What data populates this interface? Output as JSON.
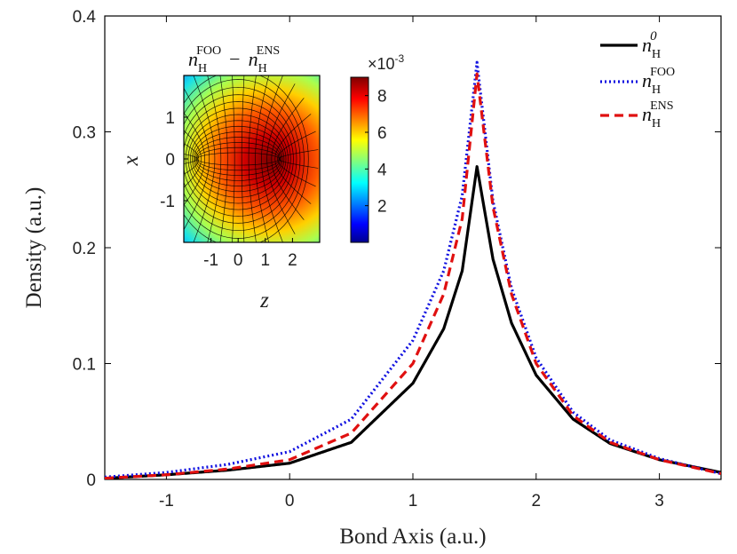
{
  "chart_data": {
    "type": "line",
    "title": "",
    "xlabel": "Bond Axis (a.u.)",
    "ylabel": "Density (a.u.)",
    "xlim": [
      -1.5,
      3.5
    ],
    "ylim": [
      0,
      0.4
    ],
    "xticks": [
      -1,
      0,
      1,
      2,
      3
    ],
    "yticks": [
      0,
      0.1,
      0.2,
      0.3,
      0.4
    ],
    "xtick_labels": [
      "-1",
      "0",
      "1",
      "2",
      "3"
    ],
    "ytick_labels": [
      "0",
      "0.1",
      "0.2",
      "0.3",
      "0.4"
    ],
    "grid": false,
    "legend_position": "top-right",
    "peak_x": 1.52,
    "series": [
      {
        "name": "n_H^0",
        "label_base": "n",
        "label_sub": "H",
        "label_sup": "0",
        "color": "#000000",
        "style": "solid",
        "peak": 0.27,
        "x": [
          -1.5,
          -1.0,
          -0.5,
          0.0,
          0.5,
          1.0,
          1.25,
          1.4,
          1.52,
          1.65,
          1.8,
          2.0,
          2.3,
          2.6,
          3.0,
          3.5
        ],
        "y": [
          0.001,
          0.004,
          0.008,
          0.014,
          0.032,
          0.083,
          0.13,
          0.18,
          0.27,
          0.19,
          0.135,
          0.09,
          0.052,
          0.031,
          0.017,
          0.006
        ]
      },
      {
        "name": "n_H^FOO",
        "label_base": "n",
        "label_sub": "H",
        "label_sup": "FOO",
        "color": "#1010e0",
        "style": "dotted",
        "peak": 0.36,
        "x": [
          -1.5,
          -1.0,
          -0.5,
          0.0,
          0.5,
          1.0,
          1.25,
          1.4,
          1.52,
          1.65,
          1.8,
          2.0,
          2.3,
          2.6,
          3.0,
          3.5
        ],
        "y": [
          0.002,
          0.006,
          0.013,
          0.024,
          0.052,
          0.12,
          0.18,
          0.245,
          0.36,
          0.24,
          0.165,
          0.105,
          0.058,
          0.034,
          0.018,
          0.005
        ]
      },
      {
        "name": "n_H^ENS",
        "label_base": "n",
        "label_sub": "H",
        "label_sup": "ENS",
        "color": "#e01010",
        "style": "dashed",
        "peak": 0.35,
        "x": [
          -1.5,
          -1.0,
          -0.5,
          0.0,
          0.5,
          1.0,
          1.25,
          1.4,
          1.52,
          1.65,
          1.8,
          2.0,
          2.3,
          2.6,
          3.0,
          3.5
        ],
        "y": [
          0.001,
          0.004,
          0.009,
          0.017,
          0.04,
          0.1,
          0.16,
          0.225,
          0.35,
          0.235,
          0.16,
          0.1,
          0.055,
          0.032,
          0.017,
          0.005
        ]
      }
    ],
    "inset": {
      "type": "heatmap",
      "title_a_base": "n",
      "title_a_sub": "H",
      "title_a_sup": "FOO",
      "title_minus": "−",
      "title_b_base": "n",
      "title_b_sub": "H",
      "title_b_sup": "ENS",
      "xlabel": "z",
      "ylabel": "x",
      "xlim": [
        -2,
        3
      ],
      "ylim": [
        -2,
        2
      ],
      "xticks": [
        -1,
        0,
        1,
        2
      ],
      "yticks": [
        1,
        0,
        -1
      ],
      "xtick_labels": [
        "-1",
        "0",
        "1",
        "2"
      ],
      "ytick_labels": [
        "1",
        "0",
        "-1"
      ],
      "colorbar_multiplier": "×10",
      "colorbar_exponent": "-3",
      "colorbar_ticks": [
        8,
        6,
        4,
        2
      ],
      "colorbar_tick_labels": [
        "8",
        "6",
        "4",
        "2"
      ],
      "colorbar_range": [
        0,
        9
      ],
      "hot_center_z": 0.9,
      "grid_nodes_z": [
        -1.5,
        1.5
      ]
    }
  }
}
